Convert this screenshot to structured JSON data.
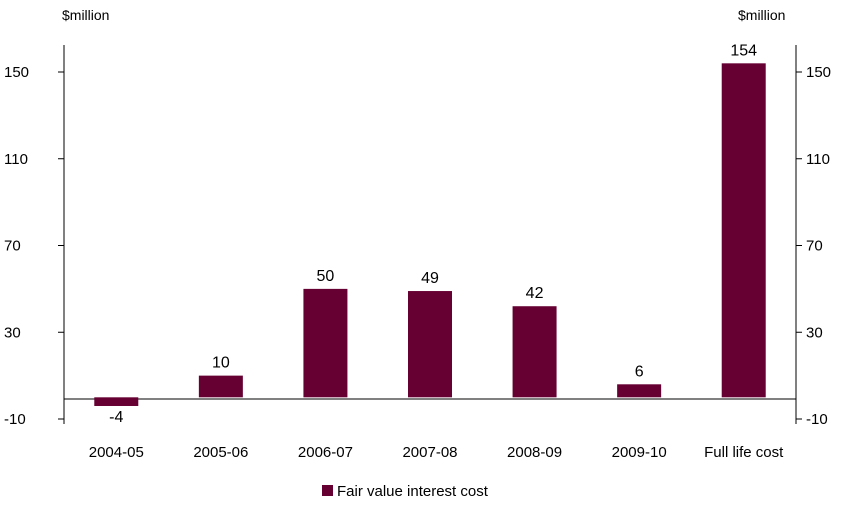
{
  "chart_data": {
    "type": "bar",
    "left_axis_unit": "$million",
    "right_axis_unit": "$million",
    "categories": [
      "2004-05",
      "2005-06",
      "2006-07",
      "2007-08",
      "2008-09",
      "2009-10",
      "Full life cost"
    ],
    "series": [
      {
        "name": "Fair value interest cost",
        "values": [
          -4,
          10,
          50,
          49,
          42,
          6,
          154
        ],
        "color": "#660033"
      }
    ],
    "data_labels": [
      "-4",
      "10",
      "50",
      "49",
      "42",
      "6",
      "154"
    ],
    "ylim": [
      -10,
      160
    ],
    "yticks": [
      "150",
      "110",
      "70",
      "30",
      "-10"
    ],
    "legend": {
      "position": "bottom-center"
    },
    "grid": false
  }
}
